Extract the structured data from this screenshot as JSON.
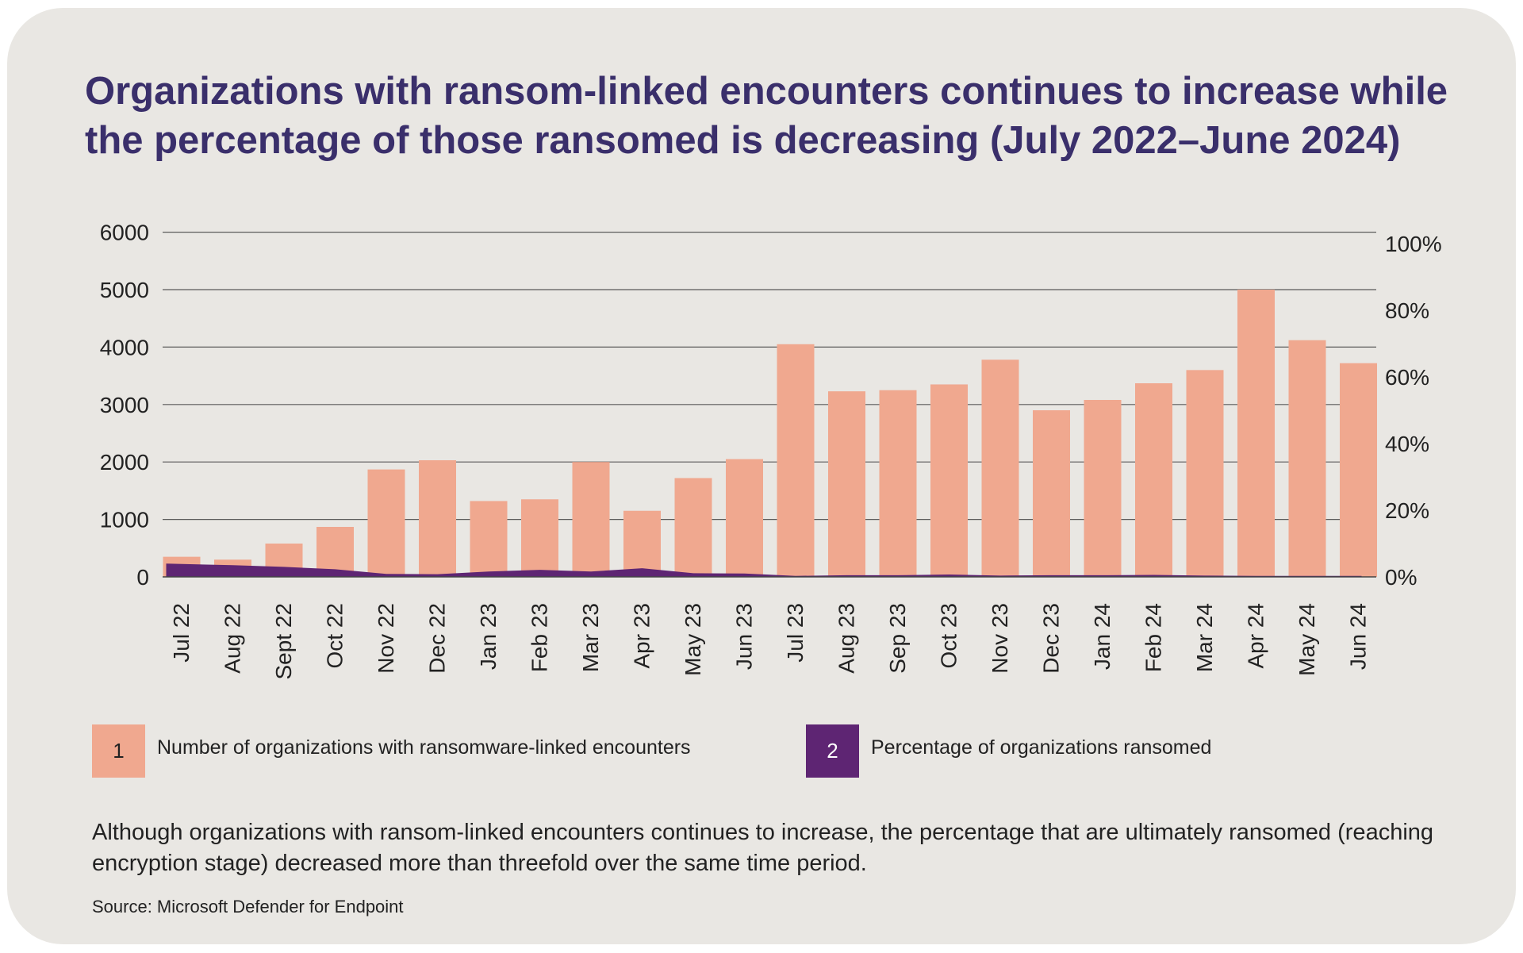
{
  "title": "Organizations with ransom-linked encounters continues to increase while the percentage of those ransomed is decreasing (July 2022–June 2024)",
  "legend": [
    {
      "number": "1",
      "label": "Number of organizations with ransomware-linked encounters",
      "color": "#f0a88f"
    },
    {
      "number": "2",
      "label": "Percentage of organizations ransomed",
      "color": "#5e2573"
    }
  ],
  "note": "Although organizations with ransom-linked encounters continues to increase, the percentage that are ultimately ransomed (reaching encryption stage) decreased more than threefold over the same time period.",
  "source": "Source: Microsoft Defender for Endpoint",
  "chart_data": {
    "type": "bar",
    "categories": [
      "Jul 22",
      "Aug 22",
      "Sept 22",
      "Oct 22",
      "Nov 22",
      "Dec 22",
      "Jan 23",
      "Feb 23",
      "Mar 23",
      "Apr 23",
      "May 23",
      "Jun 23",
      "Jul 23",
      "Aug 23",
      "Sep 23",
      "Oct 23",
      "Nov 23",
      "Dec 23",
      "Jan 24",
      "Feb 24",
      "Mar 24",
      "Apr 24",
      "May 24",
      "Jun 24"
    ],
    "series": [
      {
        "type": "bar",
        "axis": "left",
        "color": "#f0a88f",
        "values": [
          350,
          300,
          580,
          870,
          1870,
          2030,
          1320,
          1350,
          2000,
          1150,
          1720,
          2050,
          4050,
          3230,
          3250,
          3350,
          3780,
          2900,
          3080,
          3370,
          3600,
          5000,
          4120,
          3720
        ]
      },
      {
        "type": "area",
        "axis": "right",
        "color": "#5e2573",
        "values": [
          4.0,
          3.5,
          3.0,
          2.3,
          0.9,
          0.8,
          1.6,
          2.1,
          1.6,
          2.6,
          1.1,
          1.0,
          0.3,
          0.5,
          0.5,
          0.7,
          0.4,
          0.5,
          0.5,
          0.6,
          0.4,
          0.3,
          0.3,
          0.3
        ]
      }
    ],
    "y_left": {
      "min": 0,
      "max": 6000,
      "ticks": [
        "0",
        "1000",
        "2000",
        "3000",
        "4000",
        "5000",
        "6000"
      ]
    },
    "y_right": {
      "min": 0,
      "max": 100,
      "ticks": [
        "0%",
        "20%",
        "40%",
        "60%",
        "80%",
        "100%"
      ]
    },
    "grid": true,
    "legend_position": "bottom"
  }
}
